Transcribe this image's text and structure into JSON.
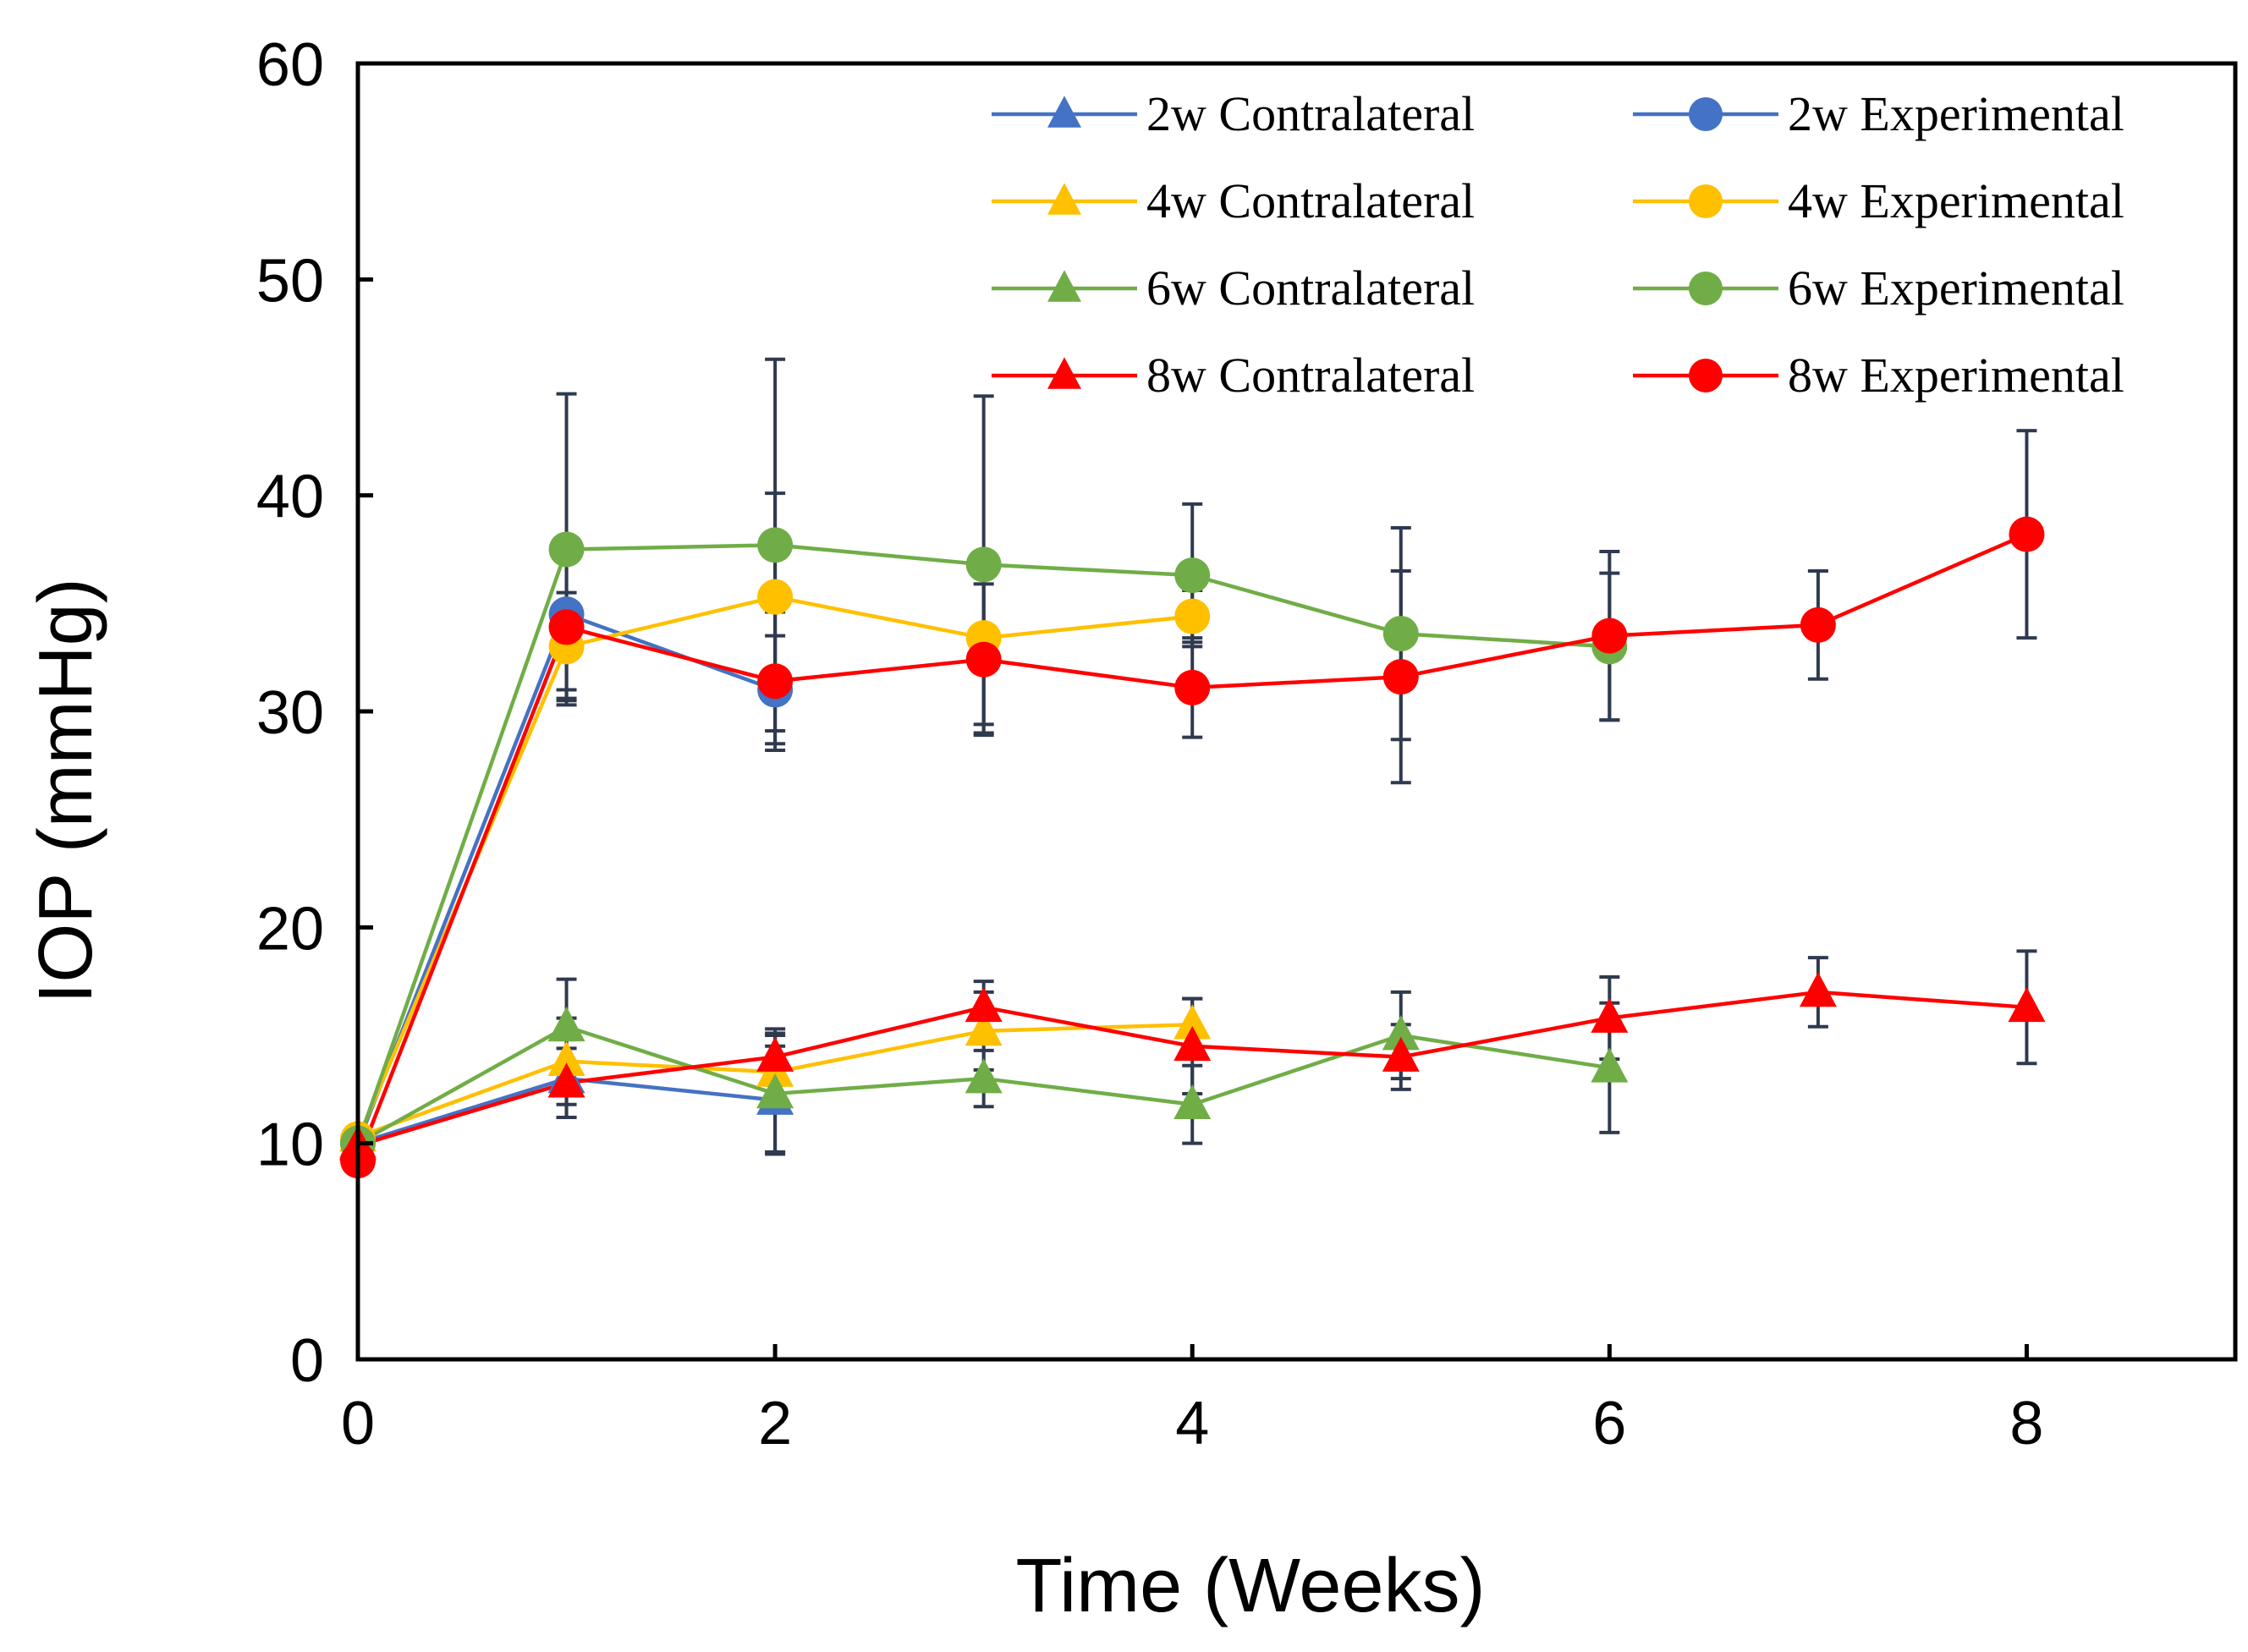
{
  "chart_data": {
    "type": "line",
    "title": "",
    "xlabel": "Time (Weeks)",
    "ylabel": "IOP (mmHg)",
    "xlim": [
      0,
      9
    ],
    "ylim": [
      0,
      60
    ],
    "xticks": [
      0,
      2,
      4,
      6,
      8
    ],
    "yticks": [
      0,
      10,
      20,
      30,
      40,
      50,
      60
    ],
    "grid": false,
    "legend_position": "top-right",
    "colors": {
      "blue": "#4472C4",
      "yellow": "#FFC000",
      "green": "#70AD47",
      "red": "#FF0000",
      "errorbar": "#2F3A4F"
    },
    "series": [
      {
        "name": "2w Contralateral",
        "marker": "triangle",
        "color": "#4472C4",
        "x": [
          0,
          1,
          2
        ],
        "y": [
          10.0,
          13.0,
          12.0
        ],
        "err": [
          0,
          1.8,
          2.5
        ]
      },
      {
        "name": "2w Experimental",
        "marker": "circle",
        "color": "#4472C4",
        "x": [
          0,
          1,
          2
        ],
        "y": [
          10.0,
          34.5,
          31.0
        ],
        "err": [
          0,
          3.5,
          2.5
        ]
      },
      {
        "name": "4w Contralateral",
        "marker": "triangle",
        "color": "#FFC000",
        "x": [
          0,
          1,
          2,
          3,
          4
        ],
        "y": [
          10.3,
          13.8,
          13.3,
          15.2,
          15.5
        ],
        "err": [
          0,
          2.0,
          1.8,
          1.8,
          1.2
        ]
      },
      {
        "name": "4w Experimental",
        "marker": "circle",
        "color": "#FFC000",
        "x": [
          0,
          1,
          2,
          3,
          4
        ],
        "y": [
          10.2,
          33.0,
          35.3,
          33.4,
          34.4
        ],
        "err": [
          0,
          2.5,
          4.8,
          4.0,
          1.2
        ]
      },
      {
        "name": "6w Contralateral",
        "marker": "triangle",
        "color": "#70AD47",
        "x": [
          0,
          1,
          2,
          3,
          4,
          5,
          6
        ],
        "y": [
          10.0,
          15.4,
          12.3,
          13.0,
          11.8,
          15.0,
          13.5
        ],
        "err": [
          0,
          2.2,
          2.7,
          1.3,
          1.8,
          2.0,
          3.0
        ]
      },
      {
        "name": "6w Experimental",
        "marker": "circle",
        "color": "#70AD47",
        "x": [
          0,
          1,
          2,
          3,
          4,
          5,
          6
        ],
        "y": [
          10.0,
          37.5,
          37.7,
          36.8,
          36.3,
          33.6,
          33.0
        ],
        "err": [
          0,
          7.2,
          8.6,
          7.8,
          3.3,
          4.9,
          3.4
        ]
      },
      {
        "name": "8w Contralateral",
        "marker": "triangle",
        "color": "#FF0000",
        "x": [
          0,
          1,
          2,
          3,
          4,
          5,
          6,
          7,
          8
        ],
        "y": [
          9.9,
          12.8,
          14.0,
          16.3,
          14.5,
          14.0,
          15.8,
          17.0,
          16.3
        ],
        "err": [
          0,
          1.6,
          1.3,
          1.2,
          2.2,
          1.5,
          1.9,
          1.6,
          2.6
        ]
      },
      {
        "name": "8w Experimental",
        "marker": "circle",
        "color": "#FF0000",
        "x": [
          0,
          1,
          2,
          3,
          4,
          5,
          6,
          7,
          8
        ],
        "y": [
          9.2,
          33.9,
          31.4,
          32.4,
          31.1,
          31.6,
          33.5,
          34.0,
          38.2
        ],
        "err": [
          0,
          3.3,
          3.2,
          3.5,
          2.3,
          4.9,
          3.9,
          2.5,
          4.8
        ]
      }
    ]
  }
}
